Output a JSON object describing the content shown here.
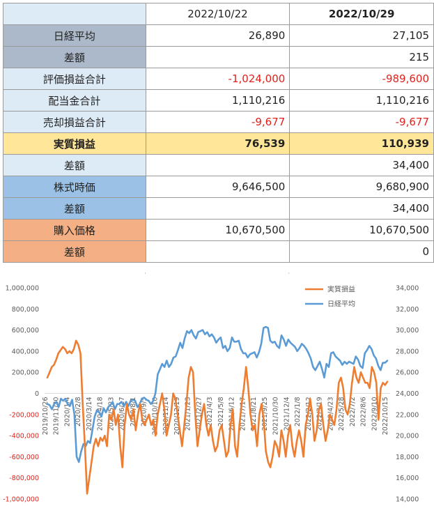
{
  "table": {
    "header": {
      "col1": "2022/10/22",
      "col2": "2022/10/29"
    },
    "rows": [
      {
        "label": "日経平均",
        "v1": "26,890",
        "v2": "27,105"
      },
      {
        "label": "差額",
        "v1": "",
        "v2": "215"
      },
      {
        "label": "評価損益合計",
        "v1": "-1,024,000",
        "v2": "-989,600"
      },
      {
        "label": "配当金合計",
        "v1": "1,110,216",
        "v2": "1,110,216"
      },
      {
        "label": "売却損益合計",
        "v1": "-9,677",
        "v2": "-9,677"
      },
      {
        "label": "実質損益",
        "v1": "76,539",
        "v2": "110,939"
      },
      {
        "label": "差額",
        "v1": "",
        "v2": "34,400"
      },
      {
        "label": "株式時価",
        "v1": "9,646,500",
        "v2": "9,680,900"
      },
      {
        "label": "差額",
        "v1": "",
        "v2": "34,400"
      },
      {
        "label": "購入価格",
        "v1": "10,670,500",
        "v2": "10,670,500"
      },
      {
        "label": "差額",
        "v1": "",
        "v2": "0"
      }
    ],
    "colors": {
      "light_blue": "#ddebf7",
      "gray": "#acb9ca",
      "yellow": "#ffe699",
      "blue": "#9bc2e6",
      "orange": "#f4b084",
      "negative": "#e0211c"
    }
  },
  "chart_data": {
    "type": "line",
    "x_tick_labels": [
      "2019/10/26",
      "2019/11/30",
      "2020/1/4",
      "2020/2/8",
      "2020/3/14",
      "2020/4/18",
      "2020/5/23",
      "2020/6/27",
      "2020/8/1",
      "2020/9/5",
      "2020/10/10",
      "2020/11/14",
      "2020/12/19",
      "2021/1/23",
      "2021/2/27",
      "2021/4/3",
      "2021/5/8",
      "2021/6/12",
      "2021/7/17",
      "2021/8/21",
      "2021/9/25",
      "2021/10/30",
      "2021/12/4",
      "2022/1/8",
      "2022/2/12",
      "2022/3/19",
      "2022/4/23",
      "2022/5/28",
      "2022/7/2",
      "2022/8/6",
      "2022/9/10",
      "2022/10/15"
    ],
    "y_left_ticks": [
      "1,000,000",
      "800,000",
      "600,000",
      "400,000",
      "200,000",
      "0",
      "-200,000",
      "-400,000",
      "-600,000",
      "-800,000",
      "-1,000,000"
    ],
    "y_right_ticks": [
      "34,000",
      "32,000",
      "30,000",
      "28,000",
      "26,000",
      "24,000",
      "22,000",
      "20,000",
      "18,000",
      "16,000",
      "14,000"
    ],
    "ylim_left": [
      -1000000,
      1000000
    ],
    "ylim_right": [
      14000,
      34000
    ],
    "series": [
      {
        "name": "実質損益",
        "axis": "left",
        "color": "#ed7d31",
        "values": [
          150000,
          200000,
          250000,
          270000,
          320000,
          380000,
          410000,
          440000,
          420000,
          380000,
          400000,
          380000,
          420000,
          500000,
          460000,
          380000,
          -100000,
          -500000,
          -950000,
          -800000,
          -650000,
          -500000,
          -430000,
          -500000,
          -420000,
          -450000,
          -400000,
          -500000,
          -200000,
          -250000,
          -150000,
          -300000,
          -200000,
          -500000,
          -700000,
          -300000,
          -100000,
          -200000,
          -250000,
          -150000,
          -350000,
          -200000,
          -100000,
          -250000,
          -300000,
          -250000,
          -200000,
          -300000,
          -250000,
          -400000,
          -200000,
          -100000,
          0,
          -150000,
          -400000,
          -300000,
          -200000,
          0,
          -50000,
          -200000,
          -350000,
          -500000,
          -300000,
          -100000,
          150000,
          250000,
          200000,
          -200000,
          -500000,
          -350000,
          -200000,
          -100000,
          -300000,
          -400000,
          -300000,
          -450000,
          -550000,
          -500000,
          -350000,
          -300000,
          -450000,
          -600000,
          -550000,
          -300000,
          -150000,
          -500000,
          -600000,
          -300000,
          -100000,
          50000,
          250000,
          50000,
          -200000,
          -350000,
          -300000,
          -500000,
          -200000,
          -100000,
          -250000,
          -550000,
          -650000,
          -700000,
          -600000,
          -450000,
          -500000,
          -600000,
          -350000,
          -450000,
          -600000,
          -400000,
          -300000,
          -500000,
          -600000,
          -450000,
          -350000,
          -450000,
          -600000,
          -300000,
          -200000,
          -50000,
          -200000,
          -450000,
          -350000,
          -150000,
          -100000,
          -300000,
          -450000,
          -350000,
          -200000,
          -250000,
          -300000,
          -150000,
          100000,
          150000,
          50000,
          -150000,
          -200000,
          -100000,
          100000,
          250000,
          150000,
          100000,
          200000,
          150000,
          100000,
          100000,
          50000,
          250000,
          200000,
          100000,
          -250000,
          50000,
          100000,
          80000,
          110939
        ]
      },
      {
        "name": "日経平均",
        "axis": "right",
        "color": "#5b9bd5",
        "values": [
          23000,
          22900,
          22500,
          23000,
          23200,
          22700,
          23500,
          23300,
          23500,
          23000,
          22800,
          23400,
          22000,
          18000,
          17500,
          18500,
          19200,
          19000,
          19500,
          19300,
          20500,
          21800,
          22400,
          22200,
          21800,
          22600,
          22200,
          22700,
          22900,
          23200,
          22500,
          23000,
          23000,
          23200,
          22800,
          23200,
          22800,
          23300,
          23400,
          23300,
          22700,
          23000,
          23500,
          23600,
          23400,
          23300,
          23000,
          23300,
          24000,
          25800,
          26300,
          26800,
          26500,
          27100,
          26500,
          26800,
          27400,
          27500,
          28100,
          28800,
          28300,
          29200,
          29900,
          29700,
          30000,
          29500,
          29200,
          29800,
          29900,
          30000,
          29600,
          29800,
          29400,
          29600,
          29300,
          28800,
          29100,
          29300,
          28300,
          28500,
          28000,
          28300,
          29300,
          28900,
          28900,
          29000,
          28200,
          27800,
          27800,
          27400,
          27700,
          27800,
          27900,
          27400,
          27900,
          28700,
          30200,
          30300,
          30200,
          29000,
          28800,
          28900,
          28500,
          28300,
          29500,
          29100,
          28500,
          29100,
          28800,
          28600,
          28400,
          28000,
          28300,
          28700,
          28500,
          28200,
          27800,
          27300,
          26500,
          26200,
          26600,
          27000,
          26300,
          25500,
          26800,
          26500,
          27800,
          27900,
          27500,
          27300,
          27100,
          26700,
          27000,
          26800,
          27000,
          26900,
          26800,
          27500,
          27200,
          26600,
          26400,
          27800,
          28100,
          28500,
          28200,
          27600,
          27300,
          26600,
          26200,
          26900,
          26900,
          27105
        ]
      }
    ],
    "legend_position": "top-right"
  }
}
